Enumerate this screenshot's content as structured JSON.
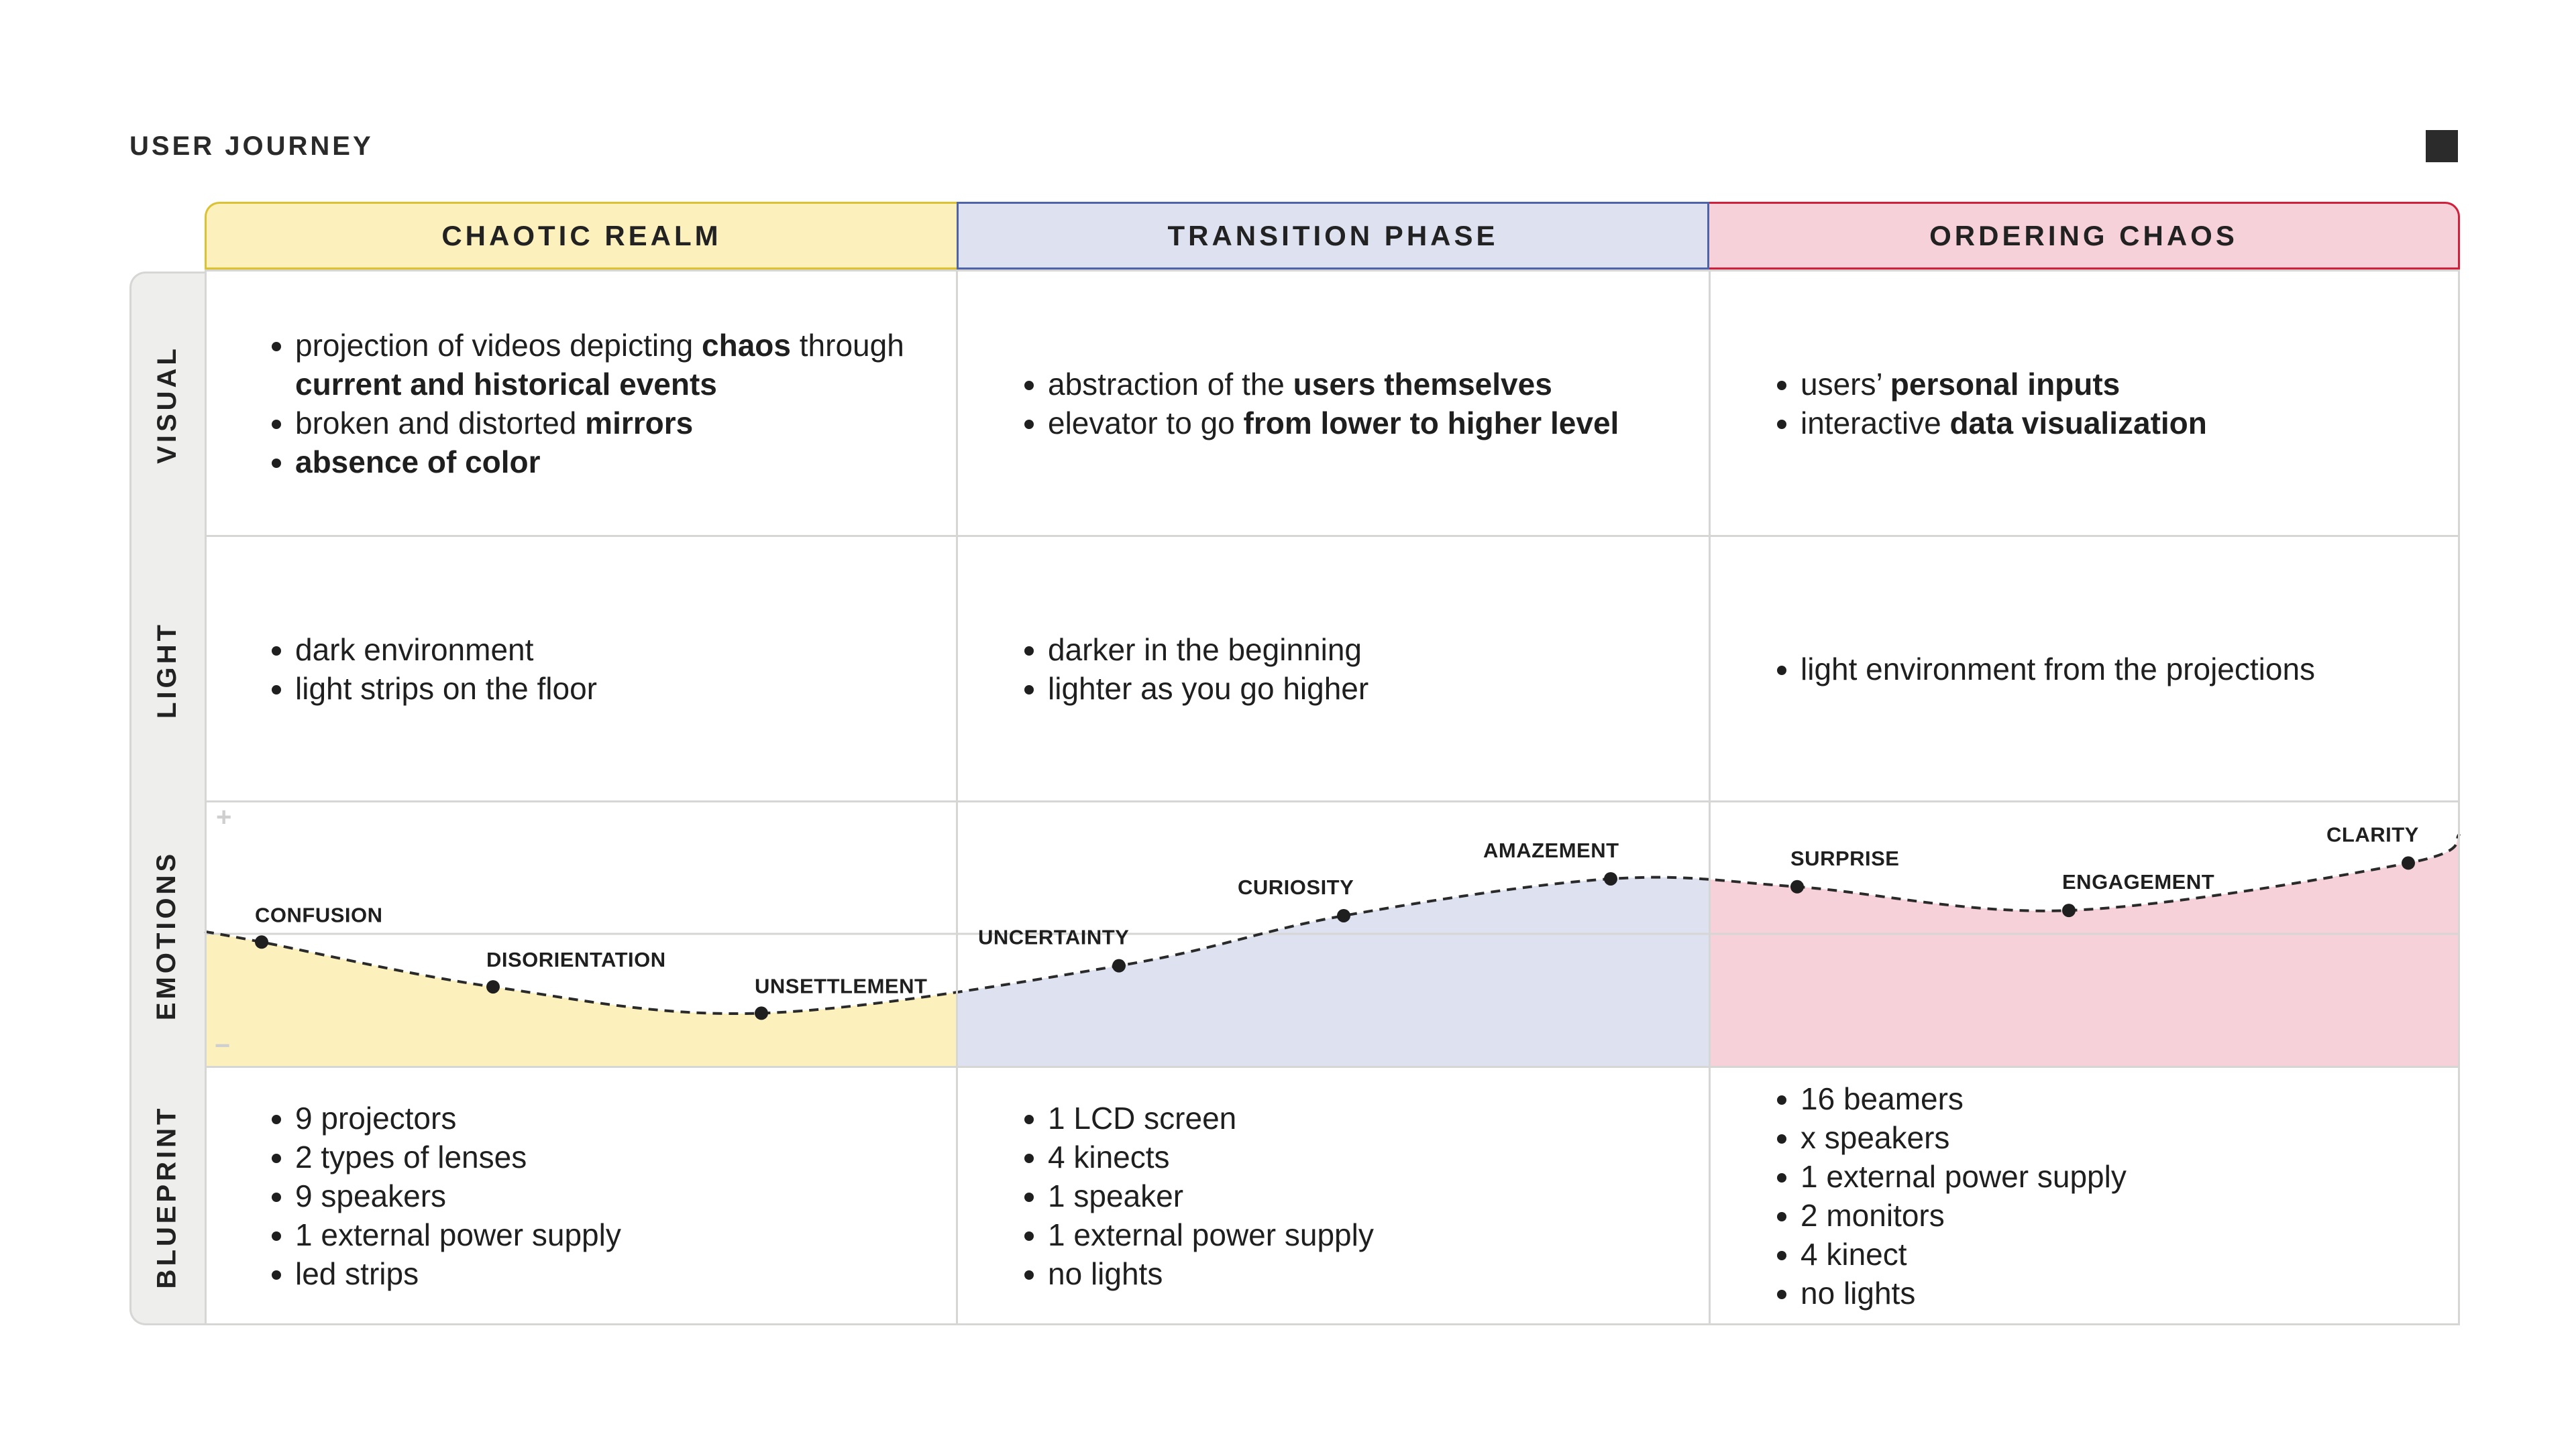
{
  "title": "USER JOURNEY",
  "phases": [
    "CHAOTIC REALM",
    "TRANSITION PHASE",
    "ORDERING CHAOS"
  ],
  "rows": [
    "VISUAL",
    "LIGHT",
    "EMOTIONS",
    "BLUEPRINT"
  ],
  "visual": [
    [
      [
        {
          "t": "projection of videos depicting ",
          "b": false
        },
        {
          "t": "chaos",
          "b": true
        },
        {
          "t": " through ",
          "b": false
        },
        {
          "t": "current and historical events",
          "b": true
        }
      ],
      [
        {
          "t": "broken and distorted ",
          "b": false
        },
        {
          "t": "mirrors",
          "b": true
        }
      ],
      [
        {
          "t": "absence of color",
          "b": true
        }
      ]
    ],
    [
      [
        {
          "t": "abstraction of the ",
          "b": false
        },
        {
          "t": "users themselves",
          "b": true
        }
      ],
      [
        {
          "t": "elevator to go ",
          "b": false
        },
        {
          "t": "from lower to higher level",
          "b": true
        }
      ]
    ],
    [
      [
        {
          "t": "users’ ",
          "b": false
        },
        {
          "t": "personal inputs",
          "b": true
        }
      ],
      [
        {
          "t": "interactive ",
          "b": false
        },
        {
          "t": "data visualization",
          "b": true
        }
      ]
    ]
  ],
  "light": [
    [
      "dark environment",
      "light strips on the floor"
    ],
    [
      "darker in the beginning",
      "lighter as you go higher"
    ],
    [
      "light environment from the projections"
    ]
  ],
  "emotions": {
    "plus": "+",
    "minus": "−",
    "colors": [
      "#fcf1bd",
      "#dde1f0",
      "#f7d1d9"
    ],
    "points": [
      {
        "label": "CONFUSION",
        "value": 0.47
      },
      {
        "label": "DISORIENTATION",
        "value": 0.3
      },
      {
        "label": "UNSETTLEMENT",
        "value": 0.2
      },
      {
        "label": "UNCERTAINTY",
        "value": 0.38
      },
      {
        "label": "CURIOSITY",
        "value": 0.57
      },
      {
        "label": "AMAZEMENT",
        "value": 0.71
      },
      {
        "label": "SURPRISE",
        "value": 0.68
      },
      {
        "label": "ENGAGEMENT",
        "value": 0.59
      },
      {
        "label": "CLARITY",
        "value": 0.77
      }
    ]
  },
  "blueprint": [
    [
      "9  projectors",
      "2 types of lenses",
      "9 speakers",
      "1 external power supply",
      "led strips"
    ],
    [
      "1 LCD screen",
      "4 kinects",
      "1 speaker",
      "1 external power supply",
      "no lights"
    ],
    [
      "16  beamers",
      "x speakers",
      "1 external power supply",
      "2 monitors",
      "4 kinect",
      "no lights"
    ]
  ]
}
